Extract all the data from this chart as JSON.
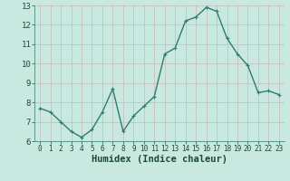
{
  "x": [
    0,
    1,
    2,
    3,
    4,
    5,
    6,
    7,
    8,
    9,
    10,
    11,
    12,
    13,
    14,
    15,
    16,
    17,
    18,
    19,
    20,
    21,
    22,
    23
  ],
  "y": [
    7.7,
    7.5,
    7.0,
    6.5,
    6.2,
    6.6,
    7.5,
    8.7,
    6.5,
    7.3,
    7.8,
    8.3,
    10.5,
    10.8,
    12.2,
    12.4,
    12.9,
    12.7,
    11.3,
    10.5,
    9.9,
    8.5,
    8.6,
    8.4
  ],
  "line_color": "#2e7d6d",
  "bg_color": "#c8e8e0",
  "grid_color": "#c8b8b8",
  "xlabel": "Humidex (Indice chaleur)",
  "ylim": [
    6,
    13
  ],
  "xlim": [
    -0.5,
    23.5
  ],
  "yticks": [
    6,
    7,
    8,
    9,
    10,
    11,
    12,
    13
  ],
  "xticks": [
    0,
    1,
    2,
    3,
    4,
    5,
    6,
    7,
    8,
    9,
    10,
    11,
    12,
    13,
    14,
    15,
    16,
    17,
    18,
    19,
    20,
    21,
    22,
    23
  ],
  "xlabel_fontsize": 7.5,
  "tick_fontsize": 6.5,
  "line_width": 1.0,
  "marker_size": 2.5
}
